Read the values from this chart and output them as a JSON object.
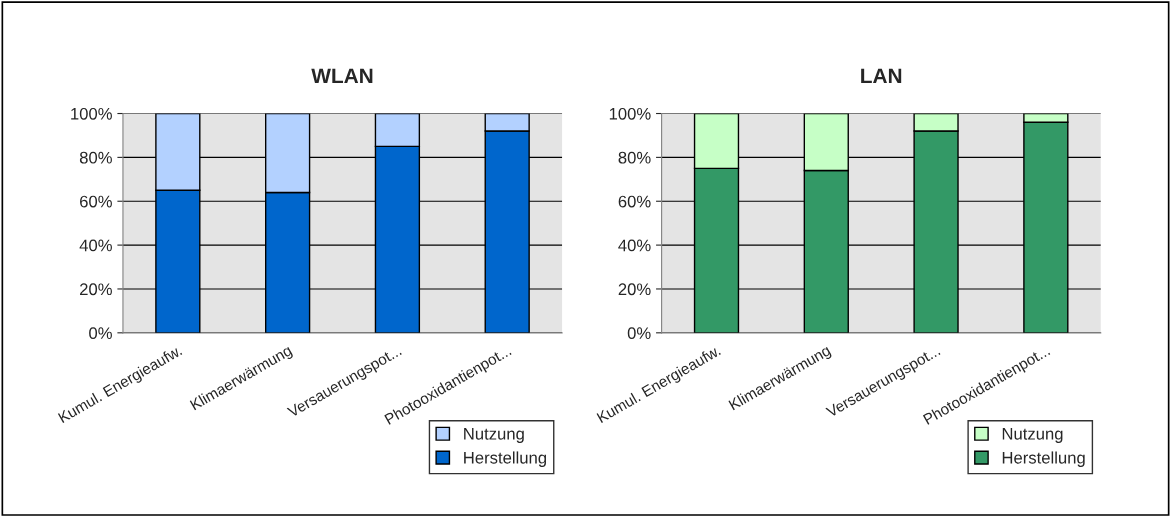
{
  "chart_data": [
    {
      "type": "bar",
      "title": "WLAN",
      "stacked": true,
      "categories": [
        "Kumul. Energieaufw.",
        "Klimaerwärmung",
        "Versauerungspot...",
        "Photooxidantienpot..."
      ],
      "ylim": [
        0,
        100
      ],
      "yticks": [
        {
          "value": 0,
          "label": "0%"
        },
        {
          "value": 20,
          "label": "20%"
        },
        {
          "value": 40,
          "label": "40%"
        },
        {
          "value": 60,
          "label": "60%"
        },
        {
          "value": 80,
          "label": "80%"
        },
        {
          "value": 100,
          "label": "100%"
        }
      ],
      "grid": "y",
      "legend": "bottom right",
      "series": [
        {
          "name": "Herstellung",
          "color": "#0066cc",
          "values": [
            65,
            64,
            85,
            92
          ]
        },
        {
          "name": "Nutzung",
          "color": "#b3d1ff",
          "values": [
            35,
            36,
            15,
            8
          ]
        }
      ]
    },
    {
      "type": "bar",
      "title": "LAN",
      "stacked": true,
      "categories": [
        "Kumul. Energieaufw.",
        "Klimaerwärmung",
        "Versauerungspot...",
        "Photooxidantienpot..."
      ],
      "ylim": [
        0,
        100
      ],
      "yticks": [
        {
          "value": 0,
          "label": "0%"
        },
        {
          "value": 20,
          "label": "20%"
        },
        {
          "value": 40,
          "label": "40%"
        },
        {
          "value": 60,
          "label": "60%"
        },
        {
          "value": 80,
          "label": "80%"
        },
        {
          "value": 100,
          "label": "100%"
        }
      ],
      "grid": "y",
      "legend": "bottom right",
      "series": [
        {
          "name": "Herstellung",
          "color": "#339966",
          "values": [
            75,
            74,
            92,
            96
          ]
        },
        {
          "name": "Nutzung",
          "color": "#c6ffc6",
          "values": [
            25,
            26,
            8,
            4
          ]
        }
      ]
    }
  ]
}
